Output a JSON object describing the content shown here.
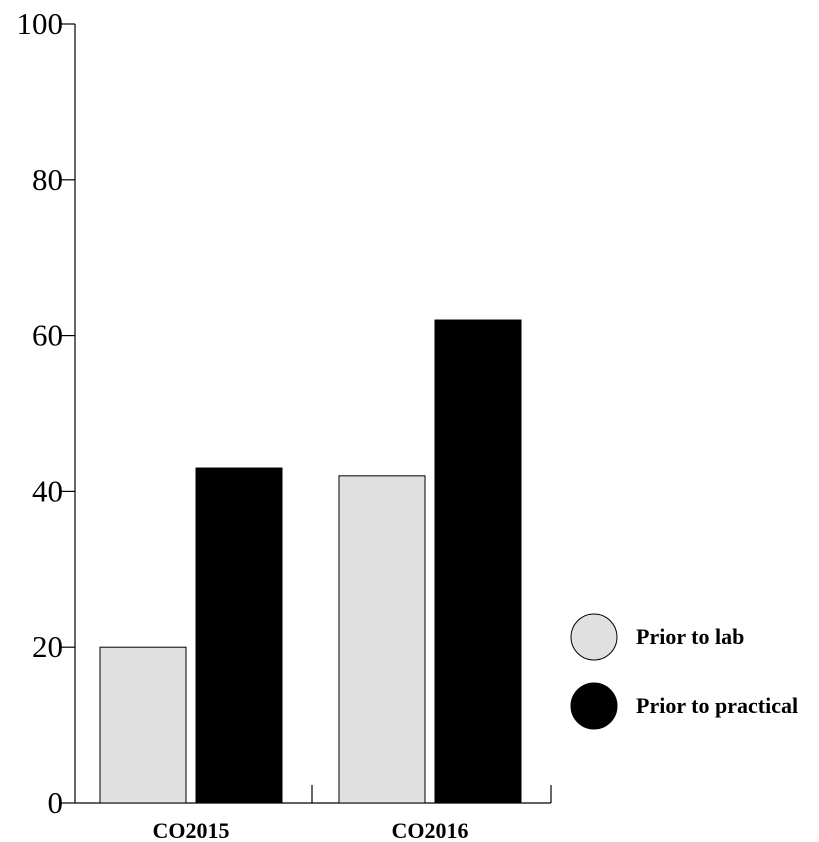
{
  "chart_data": {
    "type": "bar",
    "categories": [
      "CO2015",
      "CO2016"
    ],
    "series": [
      {
        "name": "Prior to lab",
        "values": [
          20,
          42
        ],
        "color": "#e0e0e0"
      },
      {
        "name": "Prior to practical",
        "values": [
          43,
          62
        ],
        "color": "#000000"
      }
    ],
    "ylim": [
      0,
      100
    ],
    "yticks": [
      0,
      20,
      40,
      60,
      80,
      100
    ],
    "ytick_labels": [
      "0",
      "20",
      "40",
      "60",
      "80",
      "100"
    ],
    "title": "",
    "xlabel": "",
    "ylabel": "",
    "grid": false,
    "legend_position": "right"
  }
}
